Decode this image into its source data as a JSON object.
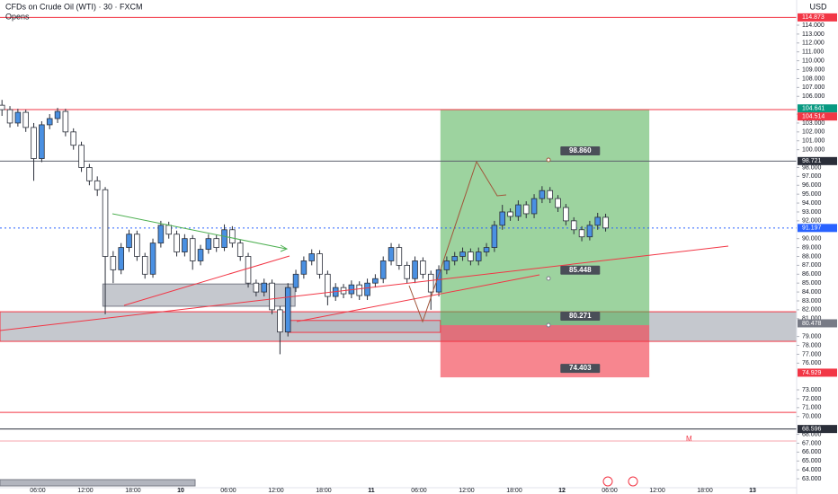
{
  "chart_data": {
    "type": "candlestick",
    "title": "CFDs on Crude Oil (WTI) · 30 · FXCM",
    "subtitle": "Opens",
    "y_label": "USD",
    "up_color": "#4a90e2",
    "down_color": "#ffffff",
    "edge_color": "#2a2e39",
    "xlim": [
      1.25,
      101.55
    ],
    "ylim": [
      62.5,
      116.83
    ],
    "xticks": [
      {
        "value": 6,
        "label": "06:00"
      },
      {
        "value": 12,
        "label": "12:00"
      },
      {
        "value": 18,
        "label": "18:00"
      },
      {
        "value": 24,
        "label": "10"
      },
      {
        "value": 30,
        "label": "06:00"
      },
      {
        "value": 36,
        "label": "12:00"
      },
      {
        "value": 42,
        "label": "18:00"
      },
      {
        "value": 48,
        "label": "11"
      },
      {
        "value": 54,
        "label": "06:00"
      },
      {
        "value": 60,
        "label": "12:00"
      },
      {
        "value": 66,
        "label": "18:00"
      },
      {
        "value": 72,
        "label": "12"
      },
      {
        "value": 78,
        "label": "06:00"
      },
      {
        "value": 84,
        "label": "12:00"
      },
      {
        "value": 90,
        "label": "18:00"
      },
      {
        "value": 96,
        "label": "13"
      }
    ],
    "yticks": [
      {
        "value": 63,
        "label": "63.000"
      },
      {
        "value": 64,
        "label": "64.000"
      },
      {
        "value": 65,
        "label": "65.000"
      },
      {
        "value": 66,
        "label": "66.000"
      },
      {
        "value": 67,
        "label": "67.000"
      },
      {
        "value": 68,
        "label": "68.000"
      },
      {
        "value": 70,
        "label": "70.000"
      },
      {
        "value": 71,
        "label": "71.000"
      },
      {
        "value": 72,
        "label": "72.000"
      },
      {
        "value": 73,
        "label": "73.000"
      },
      {
        "value": 76,
        "label": "76.000"
      },
      {
        "value": 77,
        "label": "77.000"
      },
      {
        "value": 78,
        "label": "78.000"
      },
      {
        "value": 79,
        "label": "79.000"
      },
      {
        "value": 81,
        "label": "81.000"
      },
      {
        "value": 82,
        "label": "82.000"
      },
      {
        "value": 83,
        "label": "83.000"
      },
      {
        "value": 84,
        "label": "84.000"
      },
      {
        "value": 85,
        "label": "85.000"
      },
      {
        "value": 86,
        "label": "86.000"
      },
      {
        "value": 87,
        "label": "87.000"
      },
      {
        "value": 88,
        "label": "88.000"
      },
      {
        "value": 89,
        "label": "89.000"
      },
      {
        "value": 90,
        "label": "90.000"
      },
      {
        "value": 92,
        "label": "92.000"
      },
      {
        "value": 93,
        "label": "93.000"
      },
      {
        "value": 94,
        "label": "94.000"
      },
      {
        "value": 95,
        "label": "95.000"
      },
      {
        "value": 96,
        "label": "96.000"
      },
      {
        "value": 97,
        "label": "97.000"
      },
      {
        "value": 98,
        "label": "98.000"
      },
      {
        "value": 100,
        "label": "100.000"
      },
      {
        "value": 101,
        "label": "101.000"
      },
      {
        "value": 102,
        "label": "102.000"
      },
      {
        "value": 103,
        "label": "103.000"
      },
      {
        "value": 104,
        "label": "104.000"
      },
      {
        "value": 106,
        "label": "106.000"
      },
      {
        "value": 107,
        "label": "107.000"
      },
      {
        "value": 108,
        "label": "108.000"
      },
      {
        "value": 109,
        "label": "109.000"
      },
      {
        "value": 110,
        "label": "110.000"
      },
      {
        "value": 111,
        "label": "111.000"
      },
      {
        "value": 112,
        "label": "112.000"
      },
      {
        "value": 113,
        "label": "113.000"
      },
      {
        "value": 114,
        "label": "114.000"
      }
    ],
    "x": [
      1.5,
      2.5,
      3.5,
      4.5,
      5.5,
      6.5,
      7.5,
      8.5,
      9.5,
      10.5,
      11.5,
      12.5,
      13.5,
      14.5,
      15.5,
      16.5,
      17.5,
      18.5,
      19.5,
      20.5,
      21.5,
      22.5,
      23.5,
      24.5,
      25.5,
      26.5,
      27.5,
      28.5,
      29.5,
      30.5,
      31.5,
      32.5,
      33.5,
      34.5,
      35.5,
      36.5,
      37.5,
      38.5,
      39.5,
      40.5,
      41.5,
      42.5,
      43.5,
      44.5,
      45.5,
      46.5,
      47.5,
      48.5,
      49.5,
      50.5,
      51.5,
      52.5,
      53.5,
      54.5,
      55.5,
      56.5,
      57.5,
      58.5,
      59.5,
      60.5,
      61.5,
      62.5,
      63.5,
      64.5,
      65.5,
      66.5,
      67.5,
      68.5,
      69.5,
      70.5,
      71.5,
      72.5,
      73.5,
      74.5,
      75.5,
      76.5,
      77.5
    ],
    "open": [
      105.0,
      104.5,
      103.0,
      104.2,
      102.5,
      99.0,
      102.8,
      103.5,
      104.3,
      102.0,
      100.5,
      98.0,
      96.5,
      95.5,
      88.0,
      86.5,
      89.0,
      90.5,
      88.0,
      86.0,
      89.5,
      91.5,
      90.5,
      88.5,
      90.0,
      87.5,
      88.8,
      90.0,
      89.0,
      91.0,
      89.5,
      88.0,
      85.0,
      84.0,
      85.0,
      82.0,
      79.5,
      84.5,
      86.0,
      87.5,
      88.3,
      86.0,
      83.5,
      84.5,
      83.8,
      84.8,
      83.6,
      85.0,
      85.5,
      87.5,
      89.0,
      87.0,
      85.5,
      87.5,
      86.0,
      84.0,
      86.5,
      87.5,
      88.0,
      88.5,
      87.5,
      88.5,
      89.0,
      91.5,
      93.0,
      92.5,
      93.8,
      92.8,
      94.5,
      95.4,
      94.5,
      93.5,
      92.0,
      91.0,
      90.2,
      91.5,
      92.4
    ],
    "high": [
      105.6,
      104.9,
      104.6,
      104.5,
      103.0,
      103.2,
      104.0,
      104.7,
      104.6,
      102.4,
      100.9,
      98.4,
      97.0,
      95.8,
      88.6,
      89.5,
      91.0,
      90.9,
      88.4,
      90.0,
      92.0,
      91.9,
      90.9,
      90.5,
      90.4,
      89.3,
      90.5,
      90.4,
      91.6,
      91.4,
      89.9,
      88.4,
      85.4,
      85.5,
      85.4,
      82.4,
      85.0,
      86.5,
      88.0,
      88.8,
      88.7,
      86.4,
      85.0,
      84.9,
      85.3,
      85.2,
      85.5,
      86.0,
      88.0,
      89.5,
      89.4,
      87.4,
      88.0,
      87.9,
      86.4,
      87.0,
      88.0,
      88.5,
      89.0,
      88.9,
      89.0,
      89.5,
      92.0,
      93.8,
      93.4,
      94.3,
      94.2,
      95.0,
      95.9,
      95.8,
      94.9,
      93.9,
      92.4,
      91.4,
      92.0,
      92.9,
      92.8
    ],
    "low": [
      103.8,
      102.5,
      102.6,
      102.0,
      96.5,
      98.6,
      102.3,
      103.0,
      101.5,
      100.0,
      97.5,
      96.0,
      94.8,
      81.5,
      85.0,
      86.0,
      88.5,
      87.5,
      85.5,
      85.6,
      89.0,
      90.0,
      88.0,
      88.0,
      86.5,
      87.0,
      88.3,
      88.5,
      88.6,
      89.0,
      87.5,
      84.5,
      83.5,
      83.5,
      81.5,
      77.0,
      79.0,
      84.0,
      85.5,
      87.0,
      85.5,
      82.5,
      83.0,
      83.3,
      83.3,
      83.1,
      83.1,
      84.5,
      85.0,
      87.0,
      86.5,
      85.0,
      85.0,
      85.5,
      82.0,
      83.5,
      86.0,
      87.0,
      87.5,
      87.0,
      87.0,
      88.0,
      88.5,
      91.0,
      92.0,
      92.0,
      92.3,
      92.3,
      94.0,
      94.0,
      93.0,
      91.5,
      90.5,
      89.7,
      89.8,
      91.0,
      90.8
    ],
    "close": [
      104.5,
      103.0,
      104.2,
      102.5,
      99.0,
      102.8,
      103.5,
      104.3,
      102.0,
      100.5,
      98.0,
      96.5,
      95.5,
      88.0,
      86.5,
      89.0,
      90.5,
      88.0,
      86.0,
      89.5,
      91.5,
      90.5,
      88.5,
      90.0,
      87.5,
      88.8,
      90.0,
      89.0,
      91.0,
      89.5,
      88.0,
      85.0,
      84.0,
      85.0,
      82.0,
      79.5,
      84.5,
      86.0,
      87.5,
      88.3,
      86.0,
      83.5,
      84.5,
      83.8,
      84.8,
      83.6,
      85.0,
      85.5,
      87.5,
      89.0,
      87.0,
      85.5,
      87.5,
      86.0,
      84.0,
      86.5,
      87.5,
      88.0,
      88.5,
      87.5,
      88.5,
      89.0,
      91.5,
      93.0,
      92.5,
      93.8,
      92.8,
      94.5,
      95.4,
      94.5,
      93.5,
      92.0,
      91.0,
      90.2,
      91.5,
      92.4,
      91.2
    ],
    "levels": [
      {
        "value": 114.873,
        "color": "#f23645"
      },
      {
        "value": 104.514,
        "color": "#f23645"
      },
      {
        "value": 98.721,
        "color": "#5d606b"
      },
      {
        "value": 91.197,
        "color": "#2962ff",
        "dashed": true
      },
      {
        "value": 70.47,
        "color": "#f23645"
      },
      {
        "value": 68.596,
        "color": "#2a2e39"
      },
      {
        "value": 67.24,
        "color": "#f7a6ad"
      }
    ],
    "zones": [
      {
        "x0": 1.25,
        "x1": 101.55,
        "y0": 78.45,
        "y1": 81.78,
        "fill": "#b2b5be",
        "stroke": "#f23645"
      },
      {
        "x0": 14.2,
        "x1": 38.4,
        "y0": 82.4,
        "y1": 84.9,
        "fill": "#b2b5be",
        "stroke": "#787b86"
      },
      {
        "x0": 37.5,
        "x1": 56.7,
        "y0": 79.46,
        "y1": 80.8,
        "fill": "#b2b5be",
        "stroke": "#f23645"
      }
    ],
    "position": {
      "x0": 56.7,
      "x1": 83.0,
      "target": 104.514,
      "entry": 80.271,
      "stop": 74.403,
      "label_x": 74.3
    },
    "position_labels": [
      {
        "value": 98.86,
        "label": "98.860"
      },
      {
        "value": 85.448,
        "label": "85.448"
      },
      {
        "value": 80.271,
        "label": "80.271"
      },
      {
        "value": 74.403,
        "label": "74.403"
      }
    ],
    "price_tags": [
      {
        "value": 114.873,
        "color": "#f23645"
      },
      {
        "value": 104.641,
        "color": "#089981"
      },
      {
        "value": 104.514,
        "color": "#f23645"
      },
      {
        "value": 98.721,
        "color": "#2a2e39"
      },
      {
        "value": 91.197,
        "color": "#2962ff"
      },
      {
        "value": 80.478,
        "color": "#787b86"
      },
      {
        "value": 74.929,
        "color": "#f23645"
      },
      {
        "value": 68.596,
        "color": "#2a2e39"
      }
    ],
    "marker": "M"
  }
}
